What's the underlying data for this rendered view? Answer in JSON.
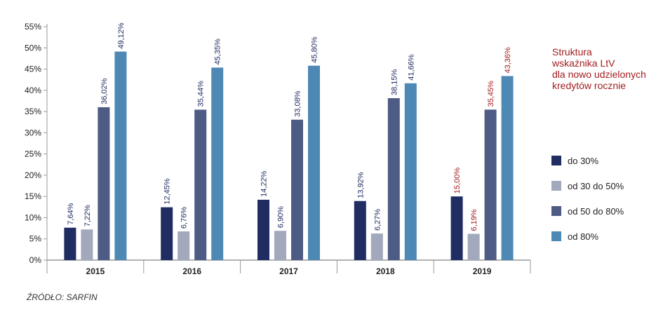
{
  "chart_data": {
    "type": "bar",
    "categories": [
      "2015",
      "2016",
      "2017",
      "2018",
      "2019"
    ],
    "highlight_category": "2019",
    "series": [
      {
        "name": "do 30%",
        "color": "#1f2d62",
        "values": [
          7.64,
          12.45,
          14.22,
          13.92,
          15.0
        ],
        "labels": [
          "7,64%",
          "12,45%",
          "14,22%",
          "13,92%",
          "15,00%"
        ]
      },
      {
        "name": "od 30 do 50%",
        "color": "#a3a9bd",
        "values": [
          7.22,
          6.76,
          6.9,
          6.27,
          6.19
        ],
        "labels": [
          "7,22%",
          "6,76%",
          "6,90%",
          "6,27%",
          "6,19%"
        ]
      },
      {
        "name": "od 50 do 80%",
        "color": "#4d5b85",
        "values": [
          36.02,
          35.44,
          33.08,
          38.15,
          35.45
        ],
        "labels": [
          "36,02%",
          "35,44%",
          "33,08%",
          "38,15%",
          "35,45%"
        ]
      },
      {
        "name": "od 80%",
        "color": "#4e88b5",
        "values": [
          49.12,
          45.35,
          45.8,
          41.66,
          43.36
        ],
        "labels": [
          "49,12%",
          "45,35%",
          "45,80%",
          "41,66%",
          "43,36%"
        ]
      }
    ],
    "yticks": [
      "0%",
      "5%",
      "10%",
      "15%",
      "20%",
      "25%",
      "30%",
      "35%",
      "40%",
      "45%",
      "50%",
      "55%"
    ],
    "ylim": [
      0,
      55
    ],
    "grid": false,
    "legend_position": "right",
    "title_lines": [
      "Struktura",
      "wskaźnika LtV",
      "dla nowo udzielonych",
      "kredytów rocznie"
    ],
    "colors": {
      "title": "#a31d20",
      "highlight_label": "#a31d20",
      "label": "#1f2d62",
      "axis": "#999999"
    }
  },
  "source": "ŹRÓDŁO: SARFIN"
}
